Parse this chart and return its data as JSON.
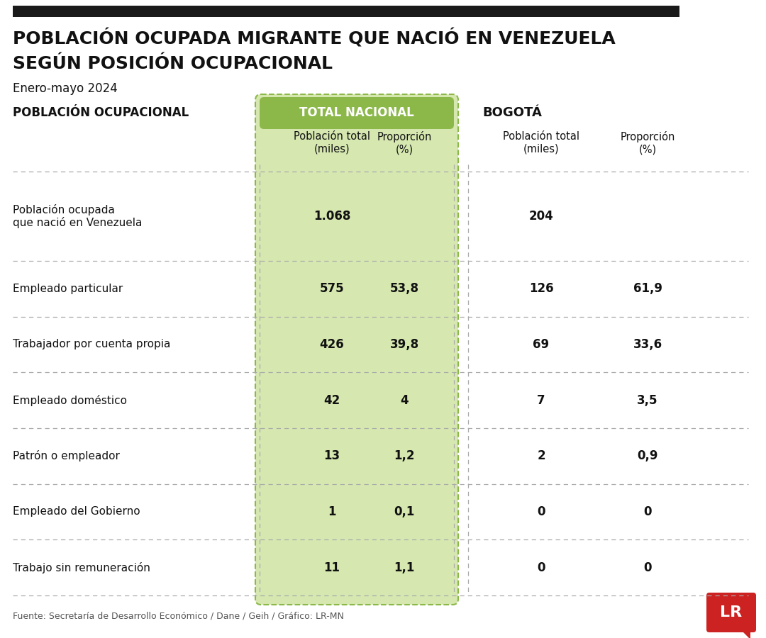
{
  "title_line1": "POBLACIÓN OCUPADA MIGRANTE QUE NACIÓ EN VENEZUELA",
  "title_line2": "SEGÚN POSICIÓN OCUPACIONAL",
  "subtitle": "Enero-mayo 2024",
  "col_header_left": "POBLACIÓN OCUPACIONAL",
  "col_header_national": "TOTAL NACIONAL",
  "col_header_bogota": "BOGOTÁ",
  "subheader_pob": "Población total\n(miles)",
  "subheader_prop": "Proporción\n(%)",
  "rows": [
    {
      "label": "Población ocupada\nque nació en Venezuela",
      "nat_pob": "1.068",
      "nat_prop": "",
      "bog_pob": "204",
      "bog_prop": "",
      "tall": true
    },
    {
      "label": "Empleado particular",
      "nat_pob": "575",
      "nat_prop": "53,8",
      "bog_pob": "126",
      "bog_prop": "61,9",
      "tall": false
    },
    {
      "label": "Trabajador por cuenta propia",
      "nat_pob": "426",
      "nat_prop": "39,8",
      "bog_pob": "69",
      "bog_prop": "33,6",
      "tall": false
    },
    {
      "label": "Empleado doméstico",
      "nat_pob": "42",
      "nat_prop": "4",
      "bog_pob": "7",
      "bog_prop": "3,5",
      "tall": false
    },
    {
      "label": "Patrón o empleador",
      "nat_pob": "13",
      "nat_prop": "1,2",
      "bog_pob": "2",
      "bog_prop": "0,9",
      "tall": false
    },
    {
      "label": "Empleado del Gobierno",
      "nat_pob": "1",
      "nat_prop": "0,1",
      "bog_pob": "0",
      "bog_prop": "0",
      "tall": false
    },
    {
      "label": "Trabajo sin remuneración",
      "nat_pob": "11",
      "nat_prop": "1,1",
      "bog_pob": "0",
      "bog_prop": "0",
      "tall": false
    }
  ],
  "footer": "Fuente: Secretaría de Desarrollo Económico / Dane / Geih / Gráfico: LR-MN",
  "top_bar_color": "#1a1a1a",
  "green_bg_color": "#d6e8b0",
  "green_header_color": "#8cb84a",
  "dashed_line_color": "#aaaaaa",
  "lr_red_color": "#cc2222",
  "bg_color": "#ffffff"
}
